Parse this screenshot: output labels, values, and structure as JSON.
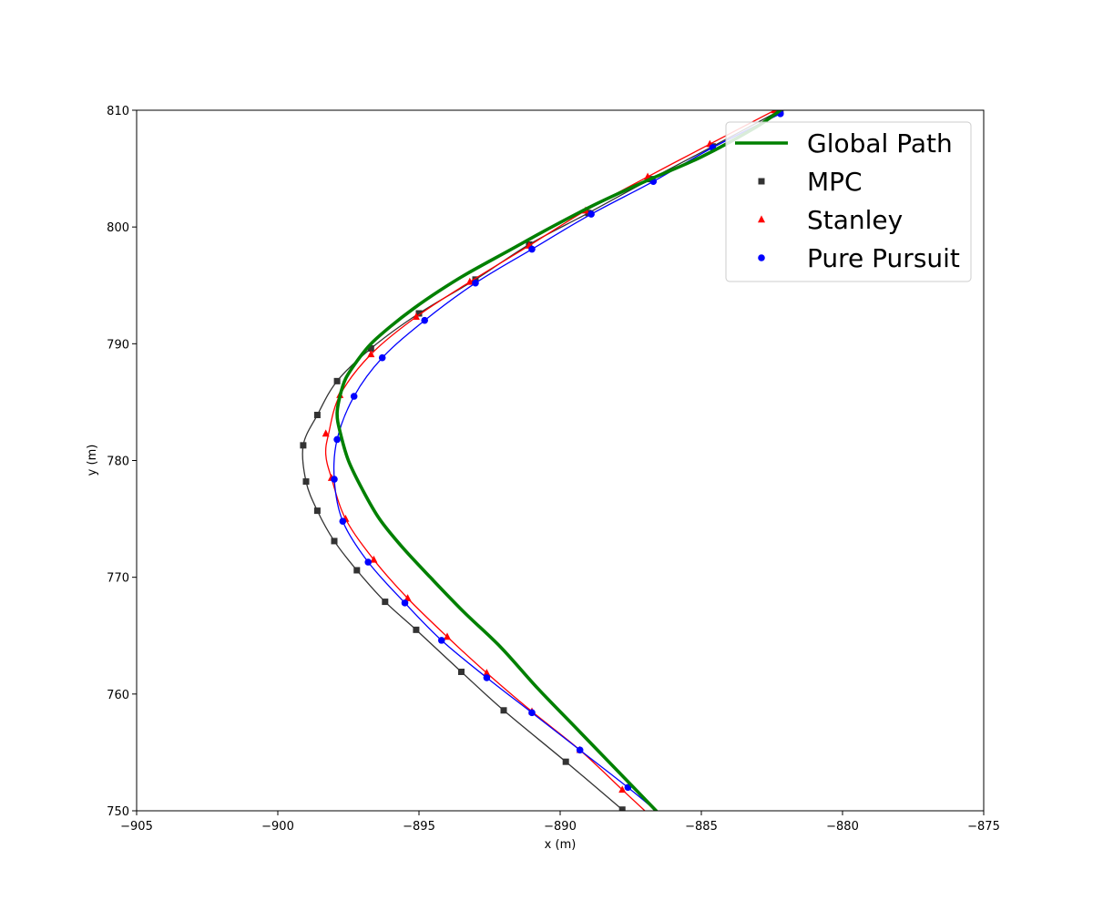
{
  "chart_data": {
    "type": "line",
    "title": "",
    "xlabel": "x (m)",
    "ylabel": "y (m)",
    "xlim": [
      -905,
      -875
    ],
    "ylim": [
      750,
      810
    ],
    "xticks": [
      -905,
      -900,
      -895,
      -890,
      -885,
      -880,
      -875
    ],
    "yticks": [
      750,
      760,
      770,
      780,
      790,
      800,
      810
    ],
    "xtick_labels": [
      "−905",
      "−900",
      "−895",
      "−890",
      "−885",
      "−880",
      "−875"
    ],
    "ytick_labels": [
      "750",
      "760",
      "770",
      "780",
      "790",
      "800",
      "810"
    ],
    "grid": false,
    "legend_position": "top-right",
    "series": [
      {
        "name": "Global Path",
        "color": "#008000",
        "marker": "none",
        "x": [
          -886.6,
          -888.0,
          -889.4,
          -890.8,
          -892.1,
          -893.4,
          -894.6,
          -895.6,
          -896.4,
          -897.0,
          -897.5,
          -897.8,
          -897.9,
          -897.8,
          -897.6,
          -897.2,
          -896.7,
          -896.0,
          -895.2,
          -894.3,
          -893.3,
          -891.8,
          -890.3,
          -888.7,
          -886.9,
          -885.0,
          -883.1,
          -882.2
        ],
        "y": [
          750.0,
          753.5,
          757.0,
          760.5,
          764.0,
          767.0,
          770.0,
          772.6,
          775.0,
          777.5,
          780.0,
          782.5,
          784.0,
          785.5,
          787.0,
          788.5,
          790.0,
          791.5,
          793.0,
          794.5,
          796.0,
          798.0,
          800.0,
          802.0,
          804.0,
          806.0,
          808.5,
          810.0
        ]
      },
      {
        "name": "MPC",
        "color": "#333333",
        "marker": "square",
        "x": [
          -887.8,
          -889.8,
          -892.0,
          -893.5,
          -895.1,
          -896.2,
          -897.2,
          -898.0,
          -898.6,
          -899.0,
          -899.1,
          -898.6,
          -897.9,
          -896.7,
          -895.0,
          -893.0,
          -891.1,
          -889.0,
          -886.8,
          -884.6,
          -882.2
        ],
        "y": [
          750.1,
          754.2,
          758.6,
          761.9,
          765.5,
          767.9,
          770.6,
          773.1,
          775.7,
          778.2,
          781.3,
          783.9,
          786.8,
          789.6,
          792.6,
          795.5,
          798.5,
          801.2,
          804.1,
          806.9,
          810.0
        ],
        "marker_x": [
          -887.8,
          -889.8,
          -892.0,
          -893.5,
          -895.1,
          -896.2,
          -897.2,
          -898.0,
          -898.6,
          -899.0,
          -899.1,
          -898.6,
          -897.9,
          -896.7,
          -895.0,
          -893.0,
          -891.1,
          -889.0,
          -886.8,
          -884.6,
          -882.2
        ],
        "marker_y": [
          750.1,
          754.2,
          758.6,
          761.9,
          765.5,
          767.9,
          770.6,
          773.1,
          775.7,
          778.2,
          781.3,
          783.9,
          786.8,
          789.6,
          792.6,
          795.5,
          798.5,
          801.2,
          804.1,
          806.9,
          810.0
        ]
      },
      {
        "name": "Stanley",
        "color": "#ff0000",
        "marker": "triangle",
        "x": [
          -887.0,
          -887.8,
          -889.3,
          -891.0,
          -892.6,
          -894.0,
          -895.4,
          -896.6,
          -897.6,
          -898.1,
          -898.3,
          -898.2,
          -897.8,
          -896.7,
          -895.1,
          -893.2,
          -891.1,
          -889.1,
          -886.9,
          -884.7,
          -882.4
        ],
        "y": [
          750.0,
          751.8,
          755.2,
          758.5,
          761.8,
          764.9,
          768.2,
          771.5,
          775.0,
          778.5,
          780.5,
          782.3,
          785.6,
          789.1,
          792.3,
          795.3,
          798.4,
          801.4,
          804.3,
          807.1,
          810.0
        ],
        "marker_x": [
          -887.8,
          -889.3,
          -891.0,
          -892.6,
          -894.0,
          -895.4,
          -896.6,
          -897.6,
          -898.1,
          -898.3,
          -897.8,
          -896.7,
          -895.1,
          -893.2,
          -891.1,
          -889.1,
          -886.9,
          -884.7,
          -882.4
        ],
        "marker_y": [
          751.8,
          755.2,
          758.5,
          761.8,
          764.9,
          768.2,
          771.5,
          775.0,
          778.5,
          782.3,
          785.6,
          789.1,
          792.3,
          795.3,
          798.4,
          801.4,
          804.3,
          807.1,
          810.0
        ]
      },
      {
        "name": "Pure Pursuit",
        "color": "#0000ff",
        "marker": "circle",
        "x": [
          -886.6,
          -887.6,
          -889.3,
          -891.0,
          -892.6,
          -894.2,
          -895.5,
          -896.8,
          -897.7,
          -898.0,
          -897.9,
          -897.3,
          -896.3,
          -894.8,
          -893.0,
          -891.0,
          -888.9,
          -886.7,
          -884.6,
          -882.2
        ],
        "y": [
          750.0,
          752.0,
          755.2,
          758.4,
          761.4,
          764.6,
          767.8,
          771.3,
          774.8,
          778.4,
          781.8,
          785.5,
          788.8,
          792.0,
          795.2,
          798.1,
          801.1,
          803.9,
          806.8,
          809.7
        ],
        "marker_x": [
          -887.6,
          -889.3,
          -891.0,
          -892.6,
          -894.2,
          -895.5,
          -896.8,
          -897.7,
          -898.0,
          -897.9,
          -897.3,
          -896.3,
          -894.8,
          -893.0,
          -891.0,
          -888.9,
          -886.7,
          -884.6,
          -882.2
        ],
        "marker_y": [
          752.0,
          755.2,
          758.4,
          761.4,
          764.6,
          767.8,
          771.3,
          774.8,
          778.4,
          781.8,
          785.5,
          788.8,
          792.0,
          795.2,
          798.1,
          801.1,
          803.9,
          806.8,
          809.7
        ]
      }
    ]
  }
}
